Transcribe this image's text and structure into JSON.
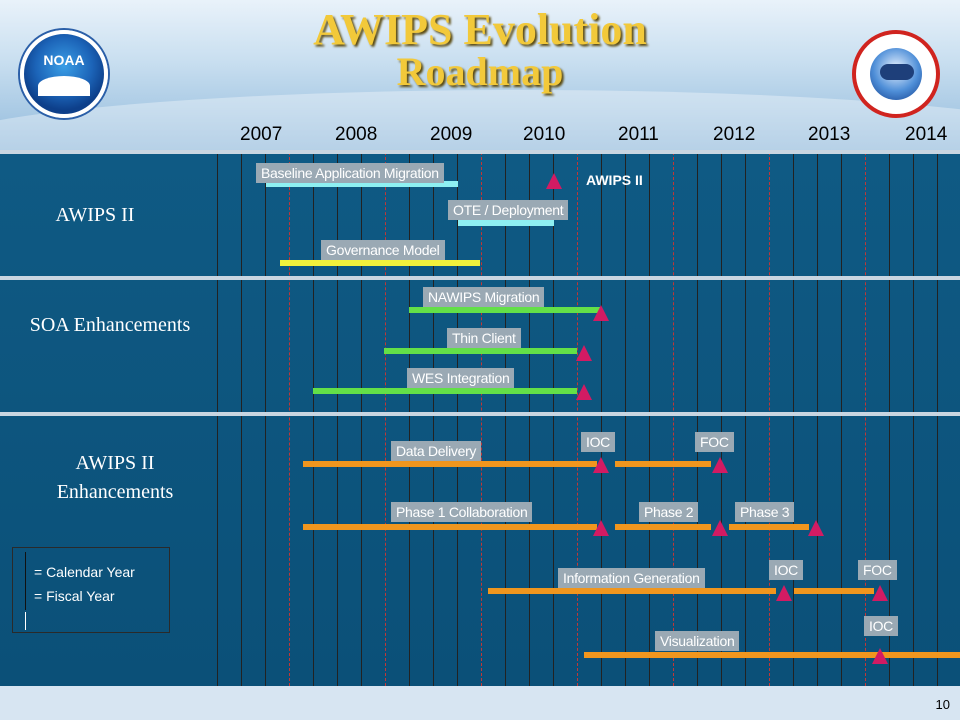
{
  "title": "AWIPS Evolution",
  "subtitle": "Roadmap",
  "logos": {
    "left": "noaa-logo",
    "right": "nws-logo",
    "noaa_text": "NOAA"
  },
  "years": [
    "2007",
    "2008",
    "2009",
    "2010",
    "2011",
    "2012",
    "2013",
    "2014"
  ],
  "sections": [
    {
      "label": "AWIPS II"
    },
    {
      "label": "SOA Enhancements"
    },
    {
      "label": "AWIPS II Enhancements"
    }
  ],
  "bars": [
    {
      "label": "Baseline Application Migration",
      "color": "#8ef0f2"
    },
    {
      "label": "OTE / Deployment",
      "color": "#8ef0f2"
    },
    {
      "label": "Governance Model",
      "color": "#f2f23c"
    },
    {
      "label": "NAWIPS Migration",
      "color": "#63e048"
    },
    {
      "label": "Thin Client",
      "color": "#63e048"
    },
    {
      "label": "WES Integration",
      "color": "#63e048"
    },
    {
      "label": "Data Delivery",
      "color": "#f0961e"
    },
    {
      "label": "Phase 1 Collaboration",
      "color": "#f0961e"
    },
    {
      "label": "Phase 2",
      "color": "#f0961e"
    },
    {
      "label": "Phase 3",
      "color": "#f0961e"
    },
    {
      "label": "Information Generation",
      "color": "#f0961e"
    },
    {
      "label": "Visualization",
      "color": "#f0961e"
    }
  ],
  "milestones": [
    {
      "label": "AWIPS II",
      "color": "#d21b63"
    },
    {
      "label": "IOC",
      "color": "#d21b63"
    },
    {
      "label": "FOC",
      "color": "#d21b63"
    },
    {
      "label": "IOC",
      "color": "#d21b63"
    },
    {
      "label": "FOC",
      "color": "#d21b63"
    },
    {
      "label": "IOC",
      "color": "#d21b63"
    }
  ],
  "legend": {
    "calendar_year": "= Calendar Year",
    "fiscal_year": "= Fiscal Year"
  },
  "page_number": "10"
}
